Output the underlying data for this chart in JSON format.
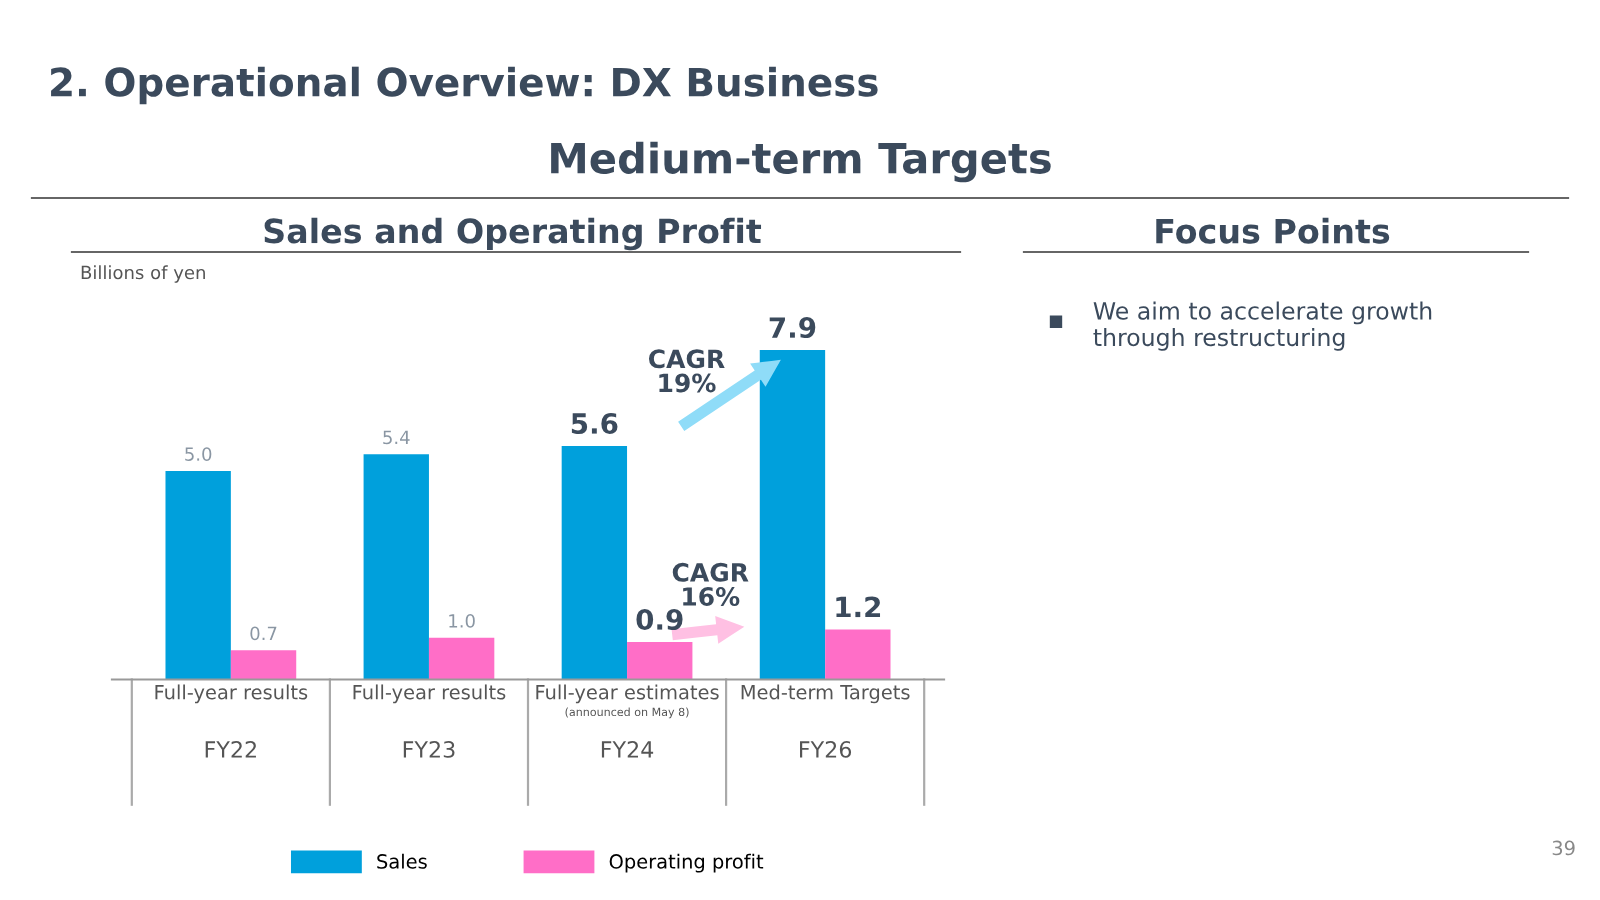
{
  "chart_data": {
    "type": "bar",
    "title": "2. Operational Overview: DX Business",
    "subtitle": "Medium-term Targets",
    "ylabel": "Billions of yen",
    "categories": [
      "FY22",
      "FY23",
      "FY24",
      "FY26"
    ],
    "series": [
      {
        "name": "Sales",
        "color": "#00a0dc",
        "values": [
          5.0,
          5.4,
          5.6,
          7.9
        ],
        "value_labels": [
          "5.0",
          "5.4",
          "5.6",
          "7.9"
        ]
      },
      {
        "name": "Operating profit",
        "color": "#ff6ec7",
        "values": [
          0.7,
          1.0,
          0.9,
          1.2
        ],
        "value_labels": [
          "0.7",
          "1.0",
          "0.9",
          "1.2"
        ]
      }
    ],
    "annotations": [
      "Full-year results",
      "Full-year results",
      "Full-year estimates\n(announced on May 8)",
      "Med-term Targets",
      "Sales and Operating Profit",
      "CAGR\n19%",
      "CAGR\n16%",
      "Focus Points",
      "We aim to accelerate growth\nthrough restructuring",
      "39"
    ],
    "legend": "bottom"
  }
}
